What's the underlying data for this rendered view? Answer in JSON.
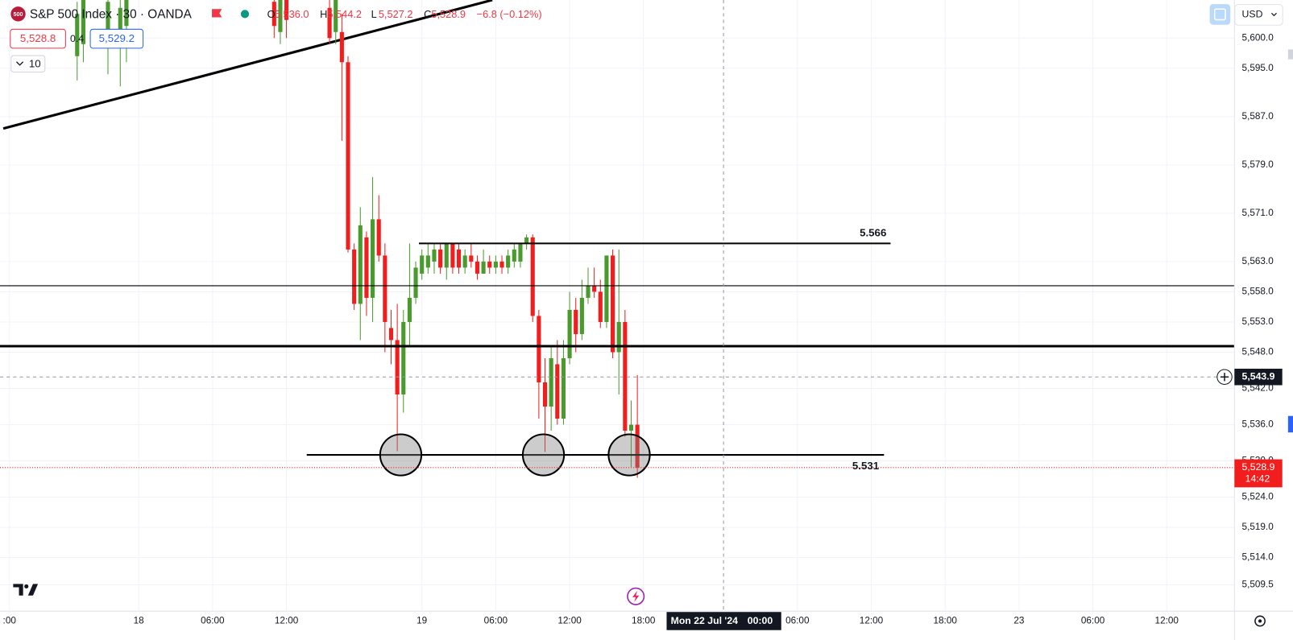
{
  "header": {
    "logo": "500",
    "symbol": "S&P 500 Index · 30 · OANDA",
    "ohlc": [
      {
        "key": "O",
        "value": "5,536.0"
      },
      {
        "key": "H",
        "value": "5,544.2"
      },
      {
        "key": "L",
        "value": "5,527.2"
      },
      {
        "key": "C",
        "value": "5,528.9"
      }
    ],
    "change": "−6.8 (−0.12%)",
    "bid": "5,528.8",
    "spread": "0.4",
    "ask": "5,529.2",
    "volume_toggle": "10",
    "currency": "USD"
  },
  "chart_data": {
    "type": "candlestick",
    "up_color": "#4a9a2e",
    "down_color": "#f21d1d",
    "grid": true,
    "x": [
      12,
      13,
      17,
      19,
      20,
      44,
      45,
      46,
      53,
      54,
      55,
      56,
      57,
      58,
      59,
      60,
      61,
      62,
      63,
      64,
      65,
      66,
      67,
      68,
      69,
      70,
      71,
      72,
      73,
      74,
      75,
      76,
      77,
      78,
      79,
      80,
      81,
      82,
      83,
      84,
      85,
      86,
      87,
      88,
      89,
      90,
      91,
      92,
      93,
      94,
      95,
      96,
      97,
      98,
      99,
      100,
      101,
      102,
      103
    ],
    "open": [
      5597,
      5599,
      5600,
      5601,
      5602,
      5606,
      5601,
      5608,
      5605,
      5601,
      5601,
      5596,
      5565,
      5556,
      5567,
      5557,
      5570,
      5564,
      5552,
      5550,
      5541,
      5553,
      5557,
      5561,
      5562,
      5563,
      5565,
      5562,
      5566,
      5565,
      5562,
      5564,
      5563,
      5561,
      5563,
      5562,
      5563,
      5562,
      5563,
      5563,
      5566,
      5567,
      5554,
      5543,
      5539,
      5546,
      5537,
      5547,
      5555,
      5551,
      5557,
      5559,
      5558,
      5553,
      5564,
      5548,
      5553,
      5535,
      5536
    ],
    "high": [
      5606,
      5607,
      5608,
      5607,
      5608,
      5608,
      5608,
      5609,
      5607,
      5608,
      5604,
      5597,
      5566,
      5572,
      5568,
      5577,
      5574,
      5566,
      5555,
      5556,
      5555,
      5566,
      5563,
      5565,
      5566,
      5566,
      5566,
      5566,
      5566,
      5566,
      5565,
      5566,
      5564,
      5565,
      5564,
      5564,
      5564,
      5565,
      5566,
      5566,
      5567.5,
      5567.5,
      5555,
      5547,
      5549,
      5550,
      5550,
      5558,
      5557,
      5560,
      5562,
      5562,
      5560,
      5564,
      5565,
      5565,
      5555,
      5540,
      5544.2
    ],
    "low": [
      5593,
      5596,
      5594,
      5592,
      5596,
      5600,
      5599,
      5600,
      5599,
      5599,
      5583,
      5564.5,
      5555,
      5550,
      5554,
      5553,
      5563,
      5548,
      5546,
      5531.6,
      5538,
      5549,
      5556,
      5560,
      5561,
      5561,
      5561,
      5560,
      5561,
      5561,
      5561,
      5562,
      5560,
      5561,
      5561,
      5561,
      5561,
      5561,
      5562,
      5562,
      5565,
      5553,
      5537,
      5531.5,
      5535,
      5536,
      5536,
      5546,
      5548,
      5550,
      5556,
      5557,
      5552,
      5552,
      5547,
      5541,
      5534,
      5529,
      5527.2
    ],
    "close": [
      5604,
      5607,
      5606,
      5605,
      5607,
      5602,
      5608,
      5603,
      5600,
      5608,
      5596,
      5565,
      5556,
      5569,
      5557,
      5570,
      5564,
      5553,
      5550,
      5541,
      5553,
      5557,
      5562,
      5564,
      5564,
      5565,
      5562,
      5566,
      5562,
      5562,
      5564,
      5563,
      5561,
      5563,
      5562,
      5563,
      5562,
      5564,
      5565,
      5566,
      5567,
      5554,
      5543,
      5539,
      5547,
      5537,
      5547,
      5555,
      5551,
      5557,
      5559,
      5558,
      5553,
      5564,
      5548,
      5553,
      5535,
      5536,
      5528.9
    ],
    "xlim": [
      0,
      200
    ],
    "ylim": [
      5505.4,
      5606.3
    ],
    "yticks": [
      {
        "value": 5600,
        "label": "5,600.0"
      },
      {
        "value": 5595,
        "label": "5,595.0"
      },
      {
        "value": 5587,
        "label": "5,587.0"
      },
      {
        "value": 5579,
        "label": "5,579.0"
      },
      {
        "value": 5571,
        "label": "5,571.0"
      },
      {
        "value": 5563,
        "label": "5,563.0"
      },
      {
        "value": 5558,
        "label": "5,558.0"
      },
      {
        "value": 5553,
        "label": "5,553.0"
      },
      {
        "value": 5548,
        "label": "5,548.0"
      },
      {
        "value": 5542,
        "label": "5,542.0"
      },
      {
        "value": 5536,
        "label": "5,536.0"
      },
      {
        "value": 5530,
        "label": "5,530.0"
      },
      {
        "value": 5524,
        "label": "5,524.0"
      },
      {
        "value": 5519,
        "label": "5,519.0"
      },
      {
        "value": 5514,
        "label": "5,514.0"
      },
      {
        "value": 5509.5,
        "label": "5,509.5"
      }
    ],
    "xticks": [
      {
        "value": 1,
        "label": ":00"
      },
      {
        "value": 22,
        "label": "18"
      },
      {
        "value": 34,
        "label": "06:00"
      },
      {
        "value": 46,
        "label": "12:00"
      },
      {
        "value": 68,
        "label": "19"
      },
      {
        "value": 80,
        "label": "06:00"
      },
      {
        "value": 92,
        "label": "12:00"
      },
      {
        "value": 104,
        "label": "18:00"
      },
      {
        "value": 129,
        "label": "06:00"
      },
      {
        "value": 141,
        "label": "12:00"
      },
      {
        "value": 153,
        "label": "18:00"
      },
      {
        "value": 165,
        "label": "23"
      },
      {
        "value": 177,
        "label": "06:00"
      },
      {
        "value": 189,
        "label": "12:00"
      }
    ],
    "levels": [
      {
        "value": 5566,
        "label": "5.566"
      },
      {
        "value": 5531,
        "label": "5.531"
      }
    ],
    "horizontal_lines": [
      5559,
      5549
    ],
    "crosshair": {
      "x": 117,
      "x_label": "Mon 22 Jul '24",
      "x_time": "00:00",
      "value": 5543.9,
      "value_label": "5,543.9"
    },
    "last_price": {
      "value": 5528.9,
      "value_label": "5,528.9",
      "countdown": "14:42"
    }
  }
}
